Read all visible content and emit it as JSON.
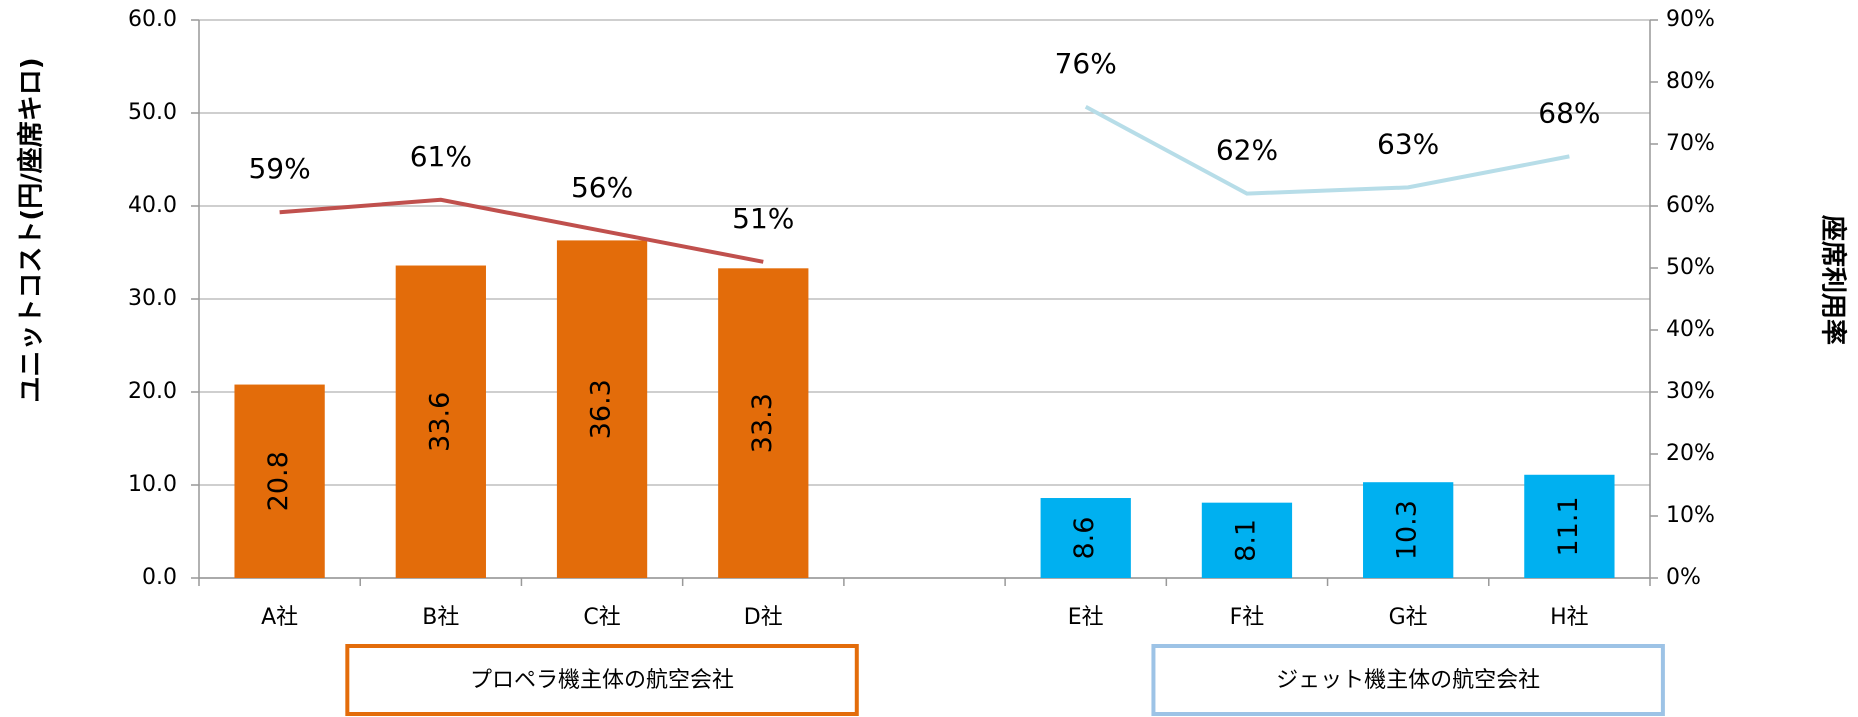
{
  "chart_data": {
    "type": "bar",
    "y_label": "ユニットコスト(円/座席キロ)",
    "y2_label": "座席利用率",
    "categories": [
      "A社",
      "B社",
      "C社",
      "D社",
      null,
      "E社",
      "F社",
      "G社",
      "H社"
    ],
    "series": [
      {
        "type": "bar",
        "color": "#e36c0a",
        "values": [
          20.8,
          33.6,
          36.3,
          33.3,
          null,
          null,
          null,
          null,
          null
        ]
      },
      {
        "type": "bar",
        "color": "#00b0f0",
        "values": [
          null,
          null,
          null,
          null,
          null,
          8.6,
          8.1,
          10.3,
          11.1
        ]
      },
      {
        "type": "line",
        "axis": "y2",
        "color": "#c0504d",
        "values": [
          59,
          61,
          56,
          51,
          null,
          null,
          null,
          null,
          null
        ],
        "value_labels": [
          "59%",
          "61%",
          "56%",
          "51%",
          null,
          null,
          null,
          null,
          null
        ]
      },
      {
        "type": "line",
        "axis": "y2",
        "color": "#b7dde8",
        "values": [
          null,
          null,
          null,
          null,
          null,
          76,
          62,
          63,
          68
        ],
        "value_labels": [
          null,
          null,
          null,
          null,
          null,
          "76%",
          "62%",
          "63%",
          "68%"
        ]
      }
    ],
    "ylim": [
      0,
      60
    ],
    "yticks": [
      {
        "value": 0,
        "label": "0.0"
      },
      {
        "value": 10,
        "label": "10.0"
      },
      {
        "value": 20,
        "label": "20.0"
      },
      {
        "value": 30,
        "label": "30.0"
      },
      {
        "value": 40,
        "label": "40.0"
      },
      {
        "value": 50,
        "label": "50.0"
      },
      {
        "value": 60,
        "label": "60.0"
      }
    ],
    "y2lim": [
      0,
      90
    ],
    "y2ticks": [
      {
        "value": 0,
        "label": "0%"
      },
      {
        "value": 10,
        "label": "10%"
      },
      {
        "value": 20,
        "label": "20%"
      },
      {
        "value": 30,
        "label": "30%"
      },
      {
        "value": 40,
        "label": "40%"
      },
      {
        "value": 50,
        "label": "50%"
      },
      {
        "value": 60,
        "label": "60%"
      },
      {
        "value": 70,
        "label": "70%"
      },
      {
        "value": 80,
        "label": "80%"
      },
      {
        "value": 90,
        "label": "90%"
      }
    ],
    "grid": true,
    "annotations": [
      {
        "text": "プロペラ機主体の航空会社",
        "color": "#e36c0a",
        "from": 1,
        "to": 3
      },
      {
        "text": "ジェット機主体の航空会社",
        "color": "#9dc3e6",
        "from": 6,
        "to": 8
      }
    ]
  }
}
